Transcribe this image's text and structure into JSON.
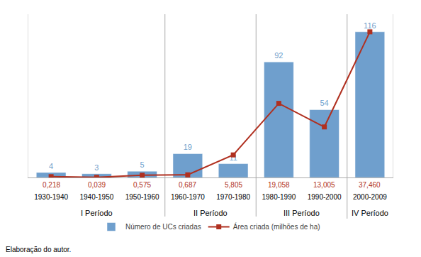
{
  "chart_data": {
    "type": "bar",
    "categories": [
      "1930-1940",
      "1940-1950",
      "1950-1960",
      "1960-1970",
      "1970-1980",
      "1980-1990",
      "1990-2000",
      "2000-2009"
    ],
    "series": [
      {
        "name": "Número de UCs criadas",
        "type": "bar",
        "color": "#6F9FCD",
        "values": [
          4,
          3,
          5,
          19,
          11,
          92,
          54,
          116
        ]
      },
      {
        "name": "Área criada (milhões de ha)",
        "type": "line",
        "axis": "y2",
        "color": "#B03020",
        "marker": "square",
        "values": [
          0.218,
          0.039,
          0.575,
          0.687,
          5.805,
          19.058,
          13.005,
          37.46
        ],
        "value_labels": [
          "0,218",
          "0,039",
          "0,575",
          "0,687",
          "5,805",
          "19,058",
          "13,005",
          "37,460"
        ]
      }
    ],
    "ylim": [
      0,
      130
    ],
    "y2lim": [
      0,
      42
    ],
    "tick_labels": "x",
    "grid": false,
    "legend": "bottom",
    "data_labels": true,
    "annotations": [
      {
        "text": "I Período",
        "categories": [
          "1930-1940",
          "1940-1950",
          "1950-1960"
        ]
      },
      {
        "text": "II Período",
        "categories": [
          "1960-1970",
          "1970-1980"
        ]
      },
      {
        "text": "III Período",
        "categories": [
          "1980-1990",
          "1990-2000"
        ]
      },
      {
        "text": "IV Período",
        "categories": [
          "2000-2009"
        ]
      }
    ],
    "caption": "Elaboração do autor."
  }
}
